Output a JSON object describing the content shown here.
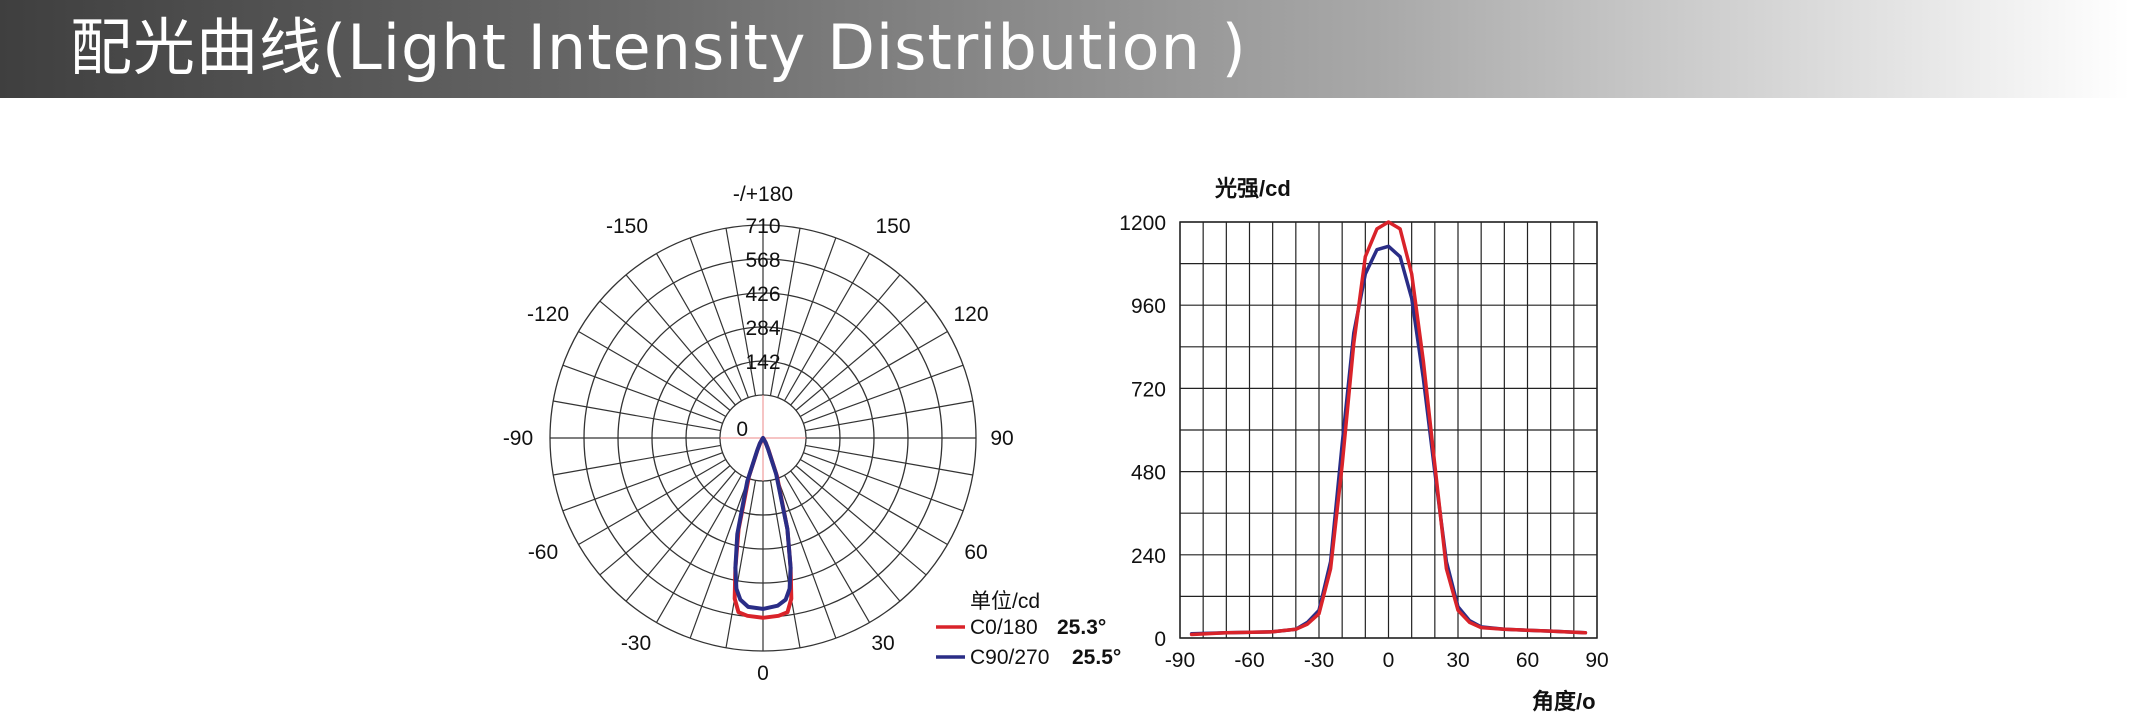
{
  "header": {
    "title": "配光曲线(Light Intensity Distribution )"
  },
  "chart_data": [
    {
      "type": "polar",
      "angle_labels": [
        "-/+180",
        "-150",
        "150",
        "-120",
        "120",
        "-90",
        "90",
        "-60",
        "60",
        "-30",
        "30",
        "0"
      ],
      "radial_ticks": [
        0,
        142,
        284,
        426,
        568,
        710
      ],
      "radial_max": 710,
      "unit_label": "单位/cd",
      "series": [
        {
          "name": "C0/180",
          "beam_angle": "25.3°",
          "color": "#d9232a",
          "angles": [
            -40,
            -30,
            -25,
            -20,
            -15,
            -12,
            -10,
            -8,
            -5,
            0,
            5,
            8,
            10,
            12,
            15,
            20,
            25,
            30,
            40
          ],
          "values": [
            2,
            22,
            50,
            160,
            370,
            520,
            640,
            690,
            700,
            705,
            700,
            690,
            640,
            520,
            370,
            160,
            50,
            22,
            2
          ]
        },
        {
          "name": "C90/270",
          "beam_angle": "25.5°",
          "color": "#2a2d86",
          "angles": [
            -40,
            -30,
            -25,
            -20,
            -15,
            -12,
            -10,
            -8,
            -5,
            0,
            5,
            8,
            10,
            12,
            15,
            20,
            25,
            30,
            40
          ],
          "values": [
            2,
            25,
            55,
            180,
            390,
            520,
            600,
            640,
            665,
            670,
            660,
            640,
            600,
            520,
            370,
            150,
            45,
            20,
            2
          ]
        }
      ]
    },
    {
      "type": "line",
      "ylabel": "光强/cd",
      "xlabel": "角度/o",
      "xlim": [
        -90,
        90
      ],
      "ylim": [
        0,
        1200
      ],
      "x_ticks": [
        -90,
        -60,
        -30,
        0,
        30,
        60,
        90
      ],
      "y_ticks": [
        0,
        240,
        480,
        720,
        960,
        1200
      ],
      "grid": true,
      "series": [
        {
          "name": "C0/180",
          "color": "#d9232a",
          "x": [
            -85,
            -70,
            -50,
            -40,
            -35,
            -30,
            -25,
            -20,
            -15,
            -10,
            -5,
            0,
            5,
            10,
            15,
            20,
            25,
            30,
            35,
            40,
            50,
            70,
            85
          ],
          "y": [
            10,
            15,
            18,
            25,
            40,
            70,
            200,
            500,
            850,
            1100,
            1180,
            1200,
            1180,
            1050,
            800,
            500,
            200,
            80,
            45,
            30,
            25,
            20,
            15
          ]
        },
        {
          "name": "C90/270",
          "color": "#2a2d86",
          "x": [
            -85,
            -70,
            -50,
            -40,
            -35,
            -30,
            -25,
            -20,
            -15,
            -10,
            -5,
            0,
            5,
            10,
            15,
            20,
            25,
            30,
            35,
            40,
            50,
            70,
            85
          ],
          "y": [
            12,
            15,
            18,
            25,
            45,
            80,
            220,
            560,
            880,
            1050,
            1120,
            1130,
            1100,
            980,
            750,
            480,
            220,
            90,
            50,
            32,
            25,
            20,
            15
          ]
        }
      ]
    }
  ]
}
